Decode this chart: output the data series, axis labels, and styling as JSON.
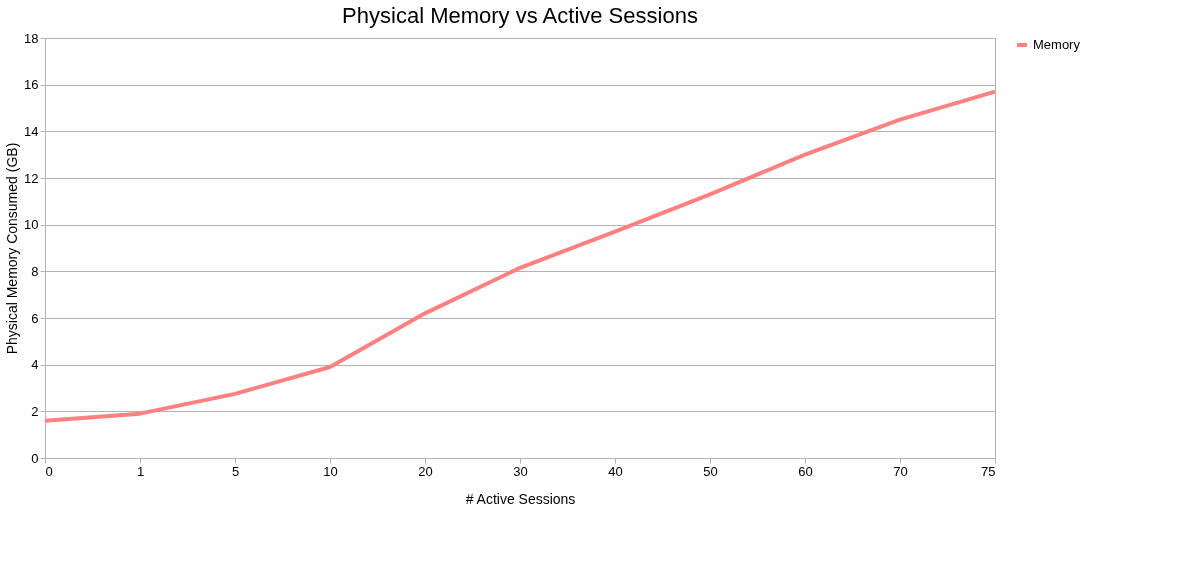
{
  "chart_data": {
    "type": "line",
    "title": "Physical Memory vs Active Sessions",
    "xlabel": "# Active Sessions",
    "ylabel": "Physical Memory Consumed (GB)",
    "categories": [
      "0",
      "1",
      "5",
      "10",
      "20",
      "30",
      "40",
      "50",
      "60",
      "70",
      "75"
    ],
    "series": [
      {
        "name": "Memory",
        "color": "#ff8080",
        "values": [
          1.6,
          1.9,
          2.75,
          3.9,
          6.2,
          8.15,
          9.7,
          11.3,
          13.0,
          14.5,
          15.7
        ]
      }
    ],
    "ylim": [
      0,
      18
    ],
    "yticks": [
      0,
      2,
      4,
      6,
      8,
      10,
      12,
      14,
      16,
      18
    ],
    "grid": "y",
    "legend": "right",
    "marker": "none",
    "line_style": "solid"
  }
}
